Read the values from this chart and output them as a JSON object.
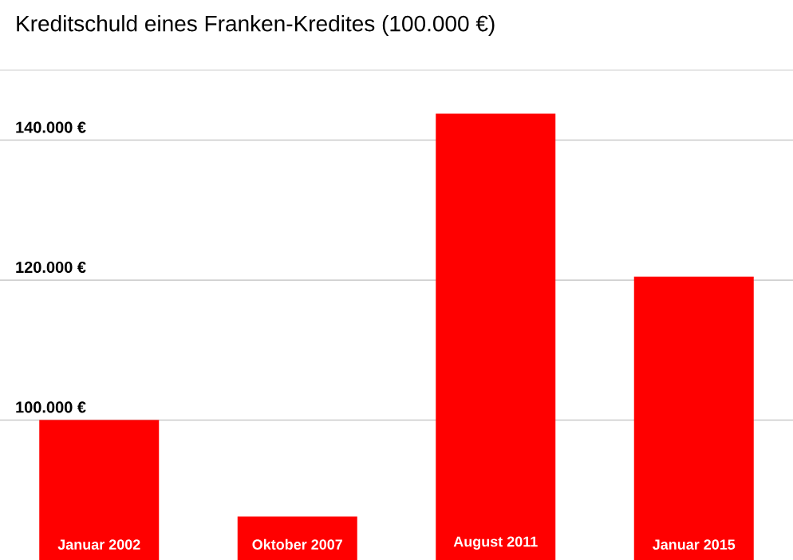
{
  "chart_data": {
    "type": "bar",
    "title": "Kreditschuld eines Franken-Kredites (100.000 €)",
    "categories": [
      "Januar 2002",
      "Oktober 2007",
      "August 2011",
      "Januar 2015"
    ],
    "values": [
      100000,
      86200,
      143800,
      120500
    ],
    "color": "#ff0000",
    "ylim": [
      80000,
      150000
    ],
    "yticks": [
      {
        "value": 100000,
        "label": "100.000 €"
      },
      {
        "value": 120000,
        "label": "120.000 €"
      },
      {
        "value": 140000,
        "label": "140.000 €"
      }
    ],
    "grid": "y"
  }
}
